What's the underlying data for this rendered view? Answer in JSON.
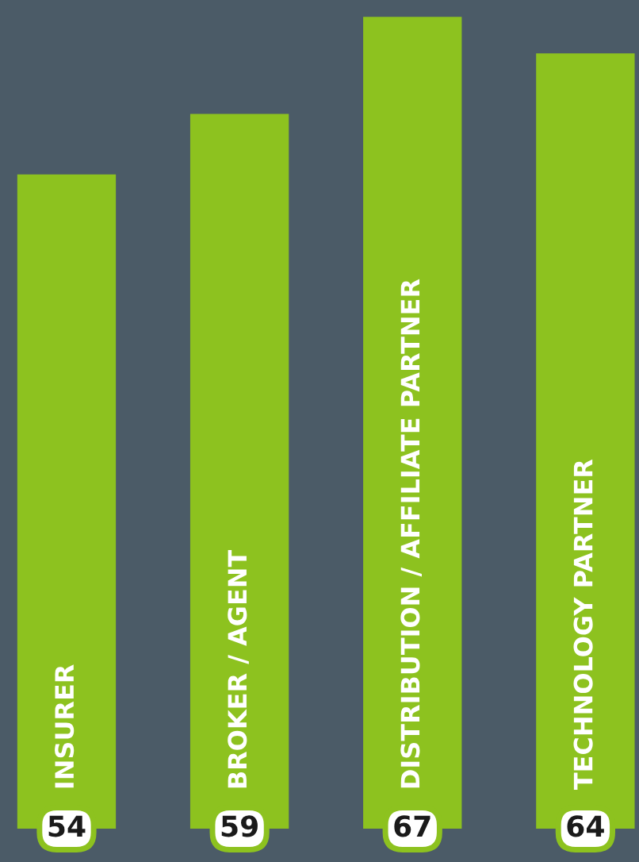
{
  "chart_data": {
    "type": "bar",
    "categories": [
      "INSURER",
      "BROKER / AGENT",
      "DISTRIBUTION / AFFILIATE PARTNER",
      "TECHNOLOGY PARTNER"
    ],
    "values": [
      54,
      59,
      67,
      64
    ],
    "color": "#8dc21f",
    "ylim": [
      -2.75,
      68.4
    ],
    "data_labels": true
  }
}
